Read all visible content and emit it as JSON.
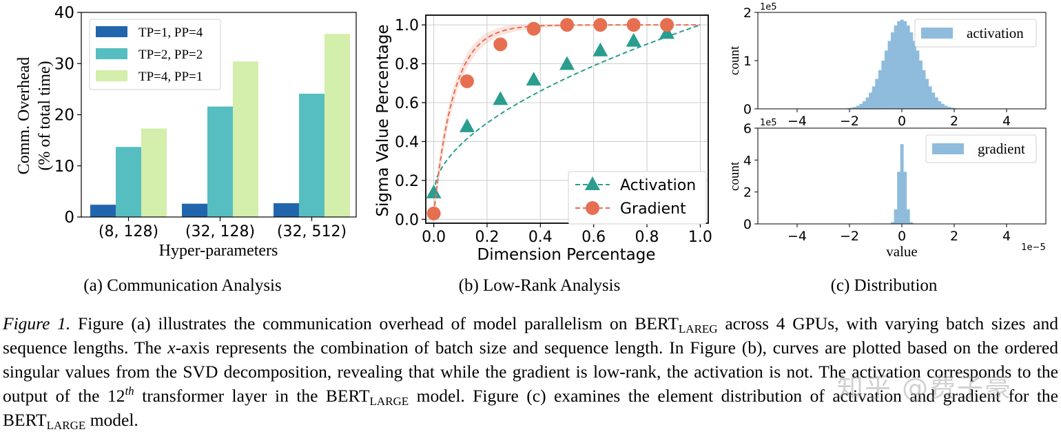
{
  "chart_data": [
    {
      "id": "a",
      "type": "bar",
      "subcaption": "(a)  Communication Analysis",
      "xlabel": "Hyper-parameters",
      "ylabel_line1": "Comm. Overhead",
      "ylabel_line2": "(% of total time)",
      "ylim": [
        0,
        40
      ],
      "yticks": [
        "0",
        "10",
        "20",
        "30",
        "40"
      ],
      "categories": [
        "(8, 128)",
        "(32, 128)",
        "(32, 512)"
      ],
      "legend_position": "top-left",
      "series": [
        {
          "name": "TP=1, PP=4",
          "color": "#2166ac",
          "values": [
            2.4,
            2.6,
            2.7
          ]
        },
        {
          "name": "TP=2, PP=2",
          "color": "#56bec1",
          "values": [
            13.7,
            21.6,
            24.1
          ]
        },
        {
          "name": "TP=4, PP=1",
          "color": "#d4eeac",
          "values": [
            17.3,
            30.4,
            35.8
          ]
        }
      ]
    },
    {
      "id": "b",
      "type": "line",
      "subcaption": "(b)  Low-Rank Analysis",
      "xlabel": "Dimension Percentage",
      "ylabel": "Sigma Value Percentage",
      "xlim": [
        -0.03,
        1.03
      ],
      "ylim": [
        -0.02,
        1.05
      ],
      "xticks": [
        "0.0",
        "0.2",
        "0.4",
        "0.6",
        "0.8",
        "1.0"
      ],
      "yticks": [
        "0.0",
        "0.2",
        "0.4",
        "0.6",
        "0.8",
        "1.0"
      ],
      "grid": true,
      "legend_position": "bottom-right",
      "series": [
        {
          "name": "Activation",
          "color": "#2a9d8f",
          "marker": "triangle",
          "x": [
            0.0,
            0.125,
            0.25,
            0.375,
            0.5,
            0.625,
            0.75,
            0.875
          ],
          "y": [
            0.14,
            0.48,
            0.62,
            0.72,
            0.8,
            0.87,
            0.92,
            0.96
          ]
        },
        {
          "name": "Gradient",
          "color": "#e76f51",
          "marker": "circle",
          "x": [
            0.0,
            0.125,
            0.25,
            0.375,
            0.5,
            0.625,
            0.75,
            0.875
          ],
          "y": [
            0.03,
            0.71,
            0.9,
            0.98,
            1.0,
            1.0,
            1.0,
            1.0
          ]
        }
      ]
    },
    {
      "id": "c",
      "type": "histogram",
      "subcaption": "(c)  Distribution",
      "xlabel": "value",
      "x_multiplier": "1e−5",
      "xlim": [
        -5.5,
        5.5
      ],
      "xticks": [
        "−4",
        "−2",
        "0",
        "2",
        "4"
      ],
      "xtick_values": [
        -4,
        -2,
        0,
        2,
        4
      ],
      "color": "#8fbcdc",
      "panels": [
        {
          "name": "activation",
          "ylabel": "count",
          "multiplier": "1e5",
          "ylim": [
            0,
            2
          ],
          "yticks": [
            "0",
            "1",
            "2"
          ],
          "ytick_values": [
            0,
            1,
            2
          ],
          "peak": 1.85,
          "sigma": 0.65
        },
        {
          "name": "gradient",
          "ylabel": "count",
          "multiplier": "1e5",
          "ylim": [
            0,
            6
          ],
          "yticks": [
            "0",
            "2",
            "4",
            "6"
          ],
          "ytick_values": [
            0,
            2,
            4,
            6
          ],
          "peak": 5.0,
          "sigma": 0.13
        }
      ]
    }
  ],
  "caption": {
    "label": "Figure 1.",
    "p1": " Figure (a) illustrates the communication overhead of model parallelism on BERT",
    "sub1": "LAREG",
    "p2": " across 4 GPUs, with varying batch sizes and sequence lengths. The ",
    "xvar": "x",
    "p3": "-axis represents the combination of batch size and sequence length. In Figure (b), curves are plotted based on the ordered singular values from the SVD decomposition, revealing that while the gradient is low-rank, the activation is not. The activation corresponds to the output of the 12",
    "sup": "th",
    "p4": " transformer layer in the BERT",
    "sub2": "LARGE",
    "p5": " model. Figure (c) examines the element distribution of activation and gradient for the BERT",
    "sub3": "LARGE",
    "p6": " model."
  },
  "watermark": "知乎 @费子豪"
}
